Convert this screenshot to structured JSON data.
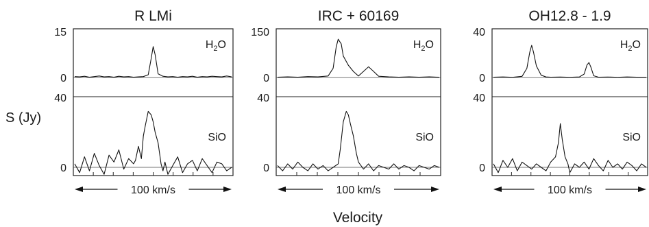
{
  "figure": {
    "ylabel": "S (Jy)",
    "xlabel": "Velocity",
    "velocity_bar_label": "100 km/s"
  },
  "chart_data": [
    {
      "type": "line",
      "title": "R LMi",
      "xlabel": "Velocity",
      "ylabel": "S (Jy)",
      "x_unit": "km/s",
      "x_range_span": 160,
      "scale_bar": "100 km/s",
      "grid": false,
      "panels": [
        {
          "label": "H2O",
          "label_display": [
            "H",
            "2",
            "O"
          ],
          "ylim": [
            0,
            15
          ],
          "yticks": [
            "0",
            "15"
          ],
          "series": [
            {
              "x": [
                0,
                5,
                10,
                15,
                20,
                25,
                30,
                35,
                40,
                45,
                50,
                55,
                60,
                65,
                70,
                75,
                78,
                80,
                82,
                85,
                90,
                95,
                100,
                105,
                110,
                115,
                120,
                125,
                130,
                135,
                140,
                145,
                150,
                155,
                160
              ],
              "y": [
                0.3,
                0.2,
                0.4,
                0.1,
                0.3,
                0.5,
                0.2,
                0.3,
                0.1,
                0.4,
                0.2,
                0.3,
                0.1,
                0.2,
                0.3,
                0.9,
                6.2,
                10.1,
                7.4,
                1.2,
                0.4,
                0.2,
                0.3,
                0.1,
                0.3,
                0.2,
                0.4,
                0.1,
                0.3,
                0.2,
                0.4,
                0.3,
                0.2,
                0.5,
                0.2
              ]
            }
          ]
        },
        {
          "label": "SiO",
          "label_display": [
            "SiO"
          ],
          "ylim": [
            0,
            40
          ],
          "yticks": [
            "0",
            "40"
          ],
          "series": [
            {
              "x": [
                0,
                5,
                10,
                15,
                20,
                25,
                30,
                35,
                40,
                45,
                50,
                55,
                60,
                62,
                65,
                68,
                70,
                72,
                75,
                78,
                80,
                82,
                85,
                88,
                90,
                92,
                95,
                100,
                105,
                110,
                115,
                120,
                125,
                130,
                135,
                140,
                145,
                150,
                155,
                160
              ],
              "y": [
                2,
                -3,
                6,
                -2,
                8,
                1,
                -4,
                7,
                3,
                10,
                -1,
                5,
                2,
                4,
                12,
                5,
                18,
                24,
                32,
                30,
                26,
                20,
                14,
                2,
                -2,
                3,
                -4,
                1,
                6,
                -3,
                2,
                4,
                -2,
                5,
                1,
                -3,
                3,
                2,
                -2,
                0
              ]
            }
          ]
        }
      ]
    },
    {
      "type": "line",
      "title": "IRC + 60169",
      "xlabel": "Velocity",
      "ylabel": "S (Jy)",
      "x_unit": "km/s",
      "x_range_span": 160,
      "scale_bar": "100 km/s",
      "grid": false,
      "panels": [
        {
          "label": "H2O",
          "label_display": [
            "H",
            "2",
            "O"
          ],
          "ylim": [
            0,
            150
          ],
          "yticks": [
            "0",
            "150"
          ],
          "series": [
            {
              "x": [
                0,
                10,
                20,
                30,
                40,
                50,
                55,
                58,
                60,
                63,
                65,
                70,
                75,
                80,
                85,
                90,
                95,
                100,
                110,
                120,
                130,
                140,
                150,
                160
              ],
              "y": [
                1,
                2,
                1,
                3,
                2,
                5,
                30,
                100,
                125,
                110,
                70,
                40,
                20,
                5,
                20,
                35,
                20,
                4,
                2,
                1,
                2,
                1,
                2,
                1
              ]
            }
          ]
        },
        {
          "label": "SiO",
          "label_display": [
            "SiO"
          ],
          "ylim": [
            0,
            40
          ],
          "yticks": [
            "0",
            "40"
          ],
          "series": [
            {
              "x": [
                0,
                5,
                10,
                15,
                20,
                25,
                30,
                35,
                40,
                45,
                50,
                55,
                60,
                62,
                65,
                68,
                70,
                72,
                75,
                78,
                80,
                85,
                90,
                95,
                100,
                105,
                110,
                115,
                120,
                125,
                130,
                135,
                140,
                145,
                150,
                155,
                160
              ],
              "y": [
                1,
                -2,
                2,
                -1,
                3,
                0,
                -2,
                2,
                -1,
                1,
                -2,
                0,
                2,
                10,
                26,
                32,
                30,
                25,
                18,
                8,
                3,
                -1,
                2,
                -2,
                1,
                0,
                -1,
                2,
                -1,
                1,
                0,
                -2,
                1,
                0,
                -1,
                1,
                0
              ]
            }
          ]
        }
      ]
    },
    {
      "type": "line",
      "title": "OH12.8 - 1.9",
      "xlabel": "Velocity",
      "ylabel": "S (Jy)",
      "x_unit": "km/s",
      "x_range_span": 160,
      "scale_bar": "100 km/s",
      "grid": false,
      "panels": [
        {
          "label": "H2O",
          "label_display": [
            "H",
            "2",
            "O"
          ],
          "ylim": [
            0,
            40
          ],
          "yticks": [
            "0",
            "40"
          ],
          "series": [
            {
              "x": [
                0,
                10,
                20,
                30,
                35,
                38,
                40,
                42,
                45,
                50,
                55,
                60,
                70,
                80,
                90,
                95,
                98,
                100,
                102,
                105,
                110,
                120,
                130,
                140,
                150,
                160
              ],
              "y": [
                0.3,
                0.5,
                0.2,
                1,
                8,
                22,
                28,
                22,
                10,
                2,
                0.5,
                0.3,
                0.4,
                0.2,
                0.5,
                3,
                11,
                13,
                9,
                1.5,
                0.3,
                0.4,
                0.2,
                0.5,
                0.3,
                0.2
              ]
            }
          ]
        },
        {
          "label": "SiO",
          "label_display": [
            "SiO"
          ],
          "ylim": [
            0,
            40
          ],
          "yticks": [
            "0",
            "40"
          ],
          "series": [
            {
              "x": [
                0,
                5,
                10,
                15,
                20,
                25,
                30,
                35,
                40,
                45,
                50,
                55,
                60,
                65,
                68,
                70,
                72,
                75,
                78,
                80,
                85,
                90,
                95,
                100,
                105,
                110,
                115,
                120,
                125,
                130,
                135,
                140,
                145,
                150,
                155,
                160
              ],
              "y": [
                2,
                -3,
                4,
                0,
                5,
                -2,
                3,
                1,
                -1,
                2,
                0,
                -2,
                3,
                6,
                14,
                25,
                16,
                6,
                2,
                -3,
                2,
                0,
                3,
                -1,
                5,
                1,
                -2,
                4,
                0,
                2,
                -1,
                3,
                1,
                -2,
                2,
                0
              ]
            }
          ]
        }
      ]
    }
  ]
}
